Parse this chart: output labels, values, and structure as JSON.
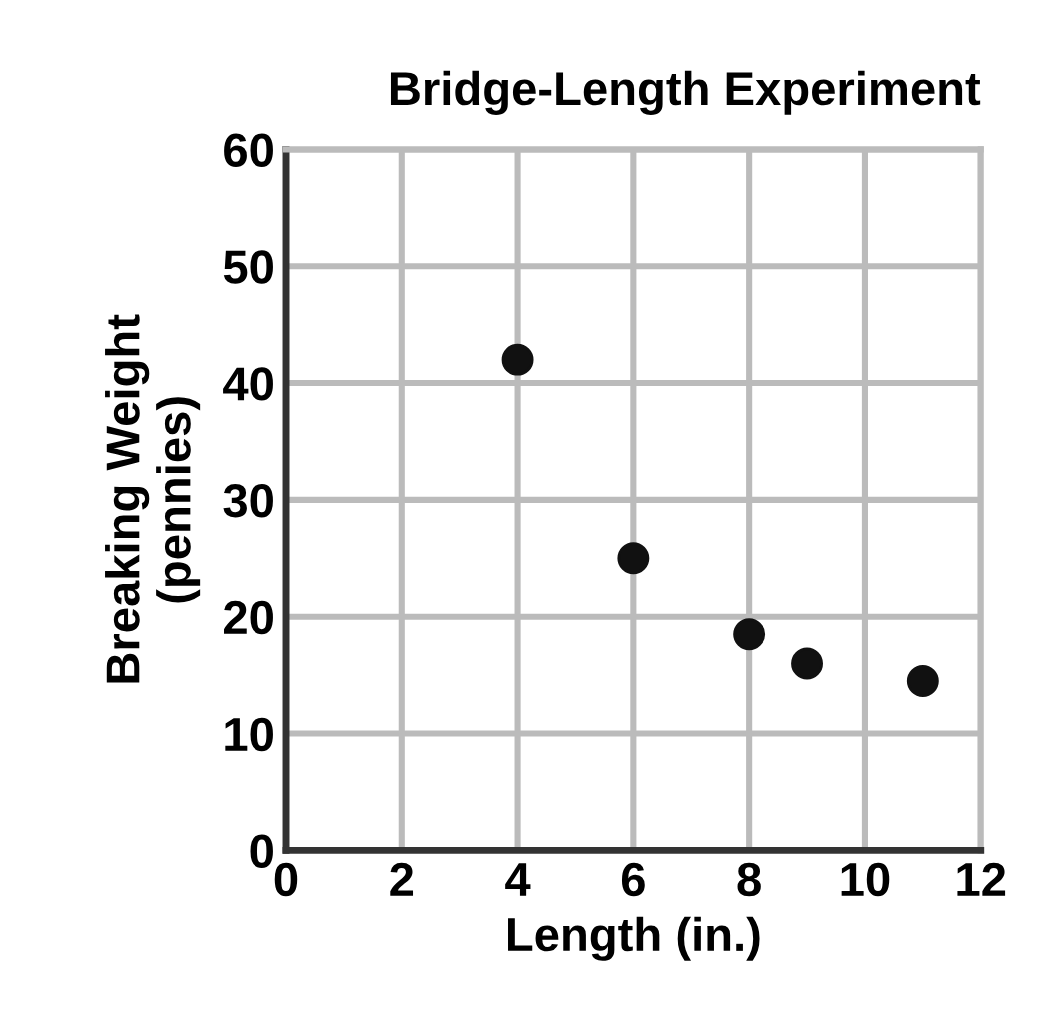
{
  "chart_data": {
    "type": "scatter",
    "title": "Bridge-Length Experiment",
    "xlabel": "Length (in.)",
    "ylabel": "Breaking Weight\n(pennies)",
    "x": [
      4,
      6,
      8,
      9,
      11
    ],
    "values": [
      42,
      25,
      18.5,
      16,
      14.5
    ],
    "color": "#111111",
    "marker": "circle",
    "xlim": [
      0,
      12
    ],
    "xticks": [
      0,
      2,
      4,
      6,
      8,
      10,
      12
    ],
    "ylim": [
      0,
      60
    ],
    "yticks": [
      0,
      10,
      20,
      30,
      40,
      50,
      60
    ],
    "grid": true
  }
}
